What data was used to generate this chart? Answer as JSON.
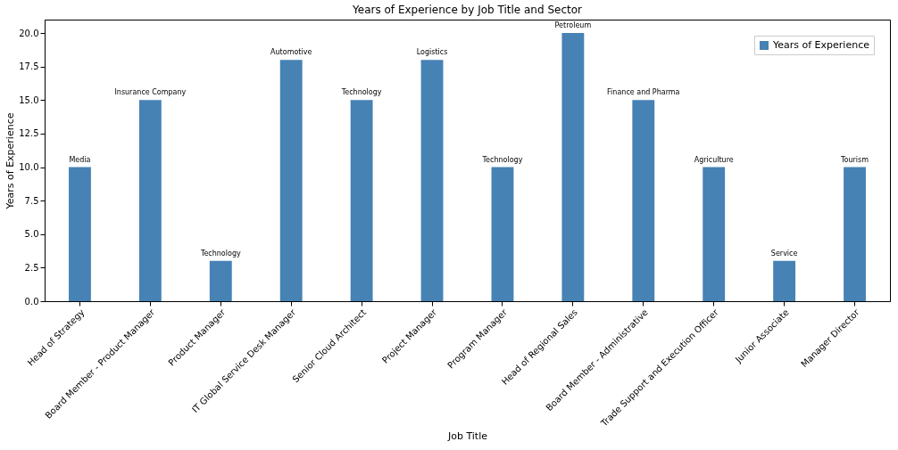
{
  "chart_data": {
    "type": "bar",
    "title": "Years of Experience by Job Title and Sector",
    "xlabel": "Job Title",
    "ylabel": "Years of Experience",
    "categories": [
      "Head of Strategy",
      "Board Member - Product Manager",
      "Product Manager",
      "IT Global Service Desk Manager",
      "Senior Cloud Architect",
      "Project Manager",
      "Program Manager",
      "Head of Regional Sales",
      "Board Member - Administrative",
      "Trade Support and Execution Officer",
      "Junior Associate",
      "Manager Director"
    ],
    "series": [
      {
        "name": "Years of Experience",
        "color": "#4682b4",
        "values": [
          10,
          15,
          3,
          18,
          15,
          18,
          10,
          20,
          15,
          10,
          3,
          10
        ]
      }
    ],
    "ylim": [
      0,
      21
    ],
    "yticks": [
      {
        "value": 0,
        "label": "0.0"
      },
      {
        "value": 2.5,
        "label": "2.5"
      },
      {
        "value": 5,
        "label": "5.0"
      },
      {
        "value": 7.5,
        "label": "7.5"
      },
      {
        "value": 10,
        "label": "10.0"
      },
      {
        "value": 12.5,
        "label": "12.5"
      },
      {
        "value": 15,
        "label": "15.0"
      },
      {
        "value": 17.5,
        "label": "17.5"
      },
      {
        "value": 20,
        "label": "20.0"
      }
    ],
    "annotations": [
      {
        "text": "Media",
        "x": "Head of Strategy",
        "y": 10
      },
      {
        "text": "Insurance Company",
        "x": "Board Member - Product Manager",
        "y": 15
      },
      {
        "text": "Technology",
        "x": "Product Manager",
        "y": 3
      },
      {
        "text": "Automotive",
        "x": "IT Global Service Desk Manager",
        "y": 18
      },
      {
        "text": "Technology",
        "x": "Senior Cloud Architect",
        "y": 15
      },
      {
        "text": "Logistics",
        "x": "Project Manager",
        "y": 18
      },
      {
        "text": "Technology",
        "x": "Program Manager",
        "y": 10
      },
      {
        "text": "Petroleum",
        "x": "Head of Regional Sales",
        "y": 20
      },
      {
        "text": "Finance and Pharma",
        "x": "Board Member - Administrative",
        "y": 15
      },
      {
        "text": "Agriculture",
        "x": "Trade Support and Execution Officer",
        "y": 10
      },
      {
        "text": "Service",
        "x": "Junior Associate",
        "y": 3
      },
      {
        "text": "Tourism",
        "x": "Manager Director",
        "y": 10
      }
    ],
    "grid": false,
    "legend": "top right"
  }
}
